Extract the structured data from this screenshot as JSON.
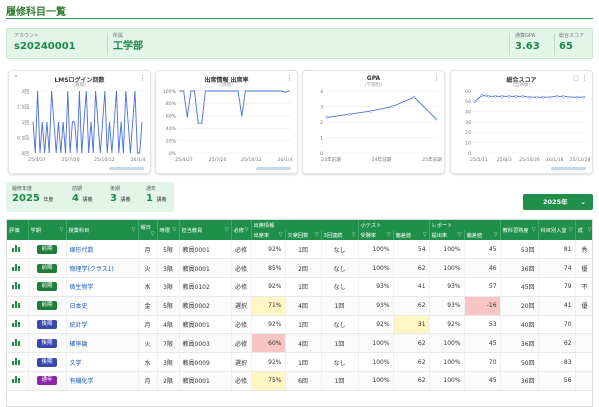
{
  "page": {
    "title": "履修科目一覧"
  },
  "profile": {
    "account_label": "アカウント",
    "account_value": "s20240001",
    "dept_label": "所属",
    "dept_value": "工学部",
    "gpa_label": "通算GPA",
    "gpa_value": "3.63",
    "score_label": "総合スコア",
    "score_value": "65"
  },
  "charts": [
    {
      "title": "LMSログイン回数",
      "subtitle": "(週間)",
      "type": "line",
      "y_ticks": [
        "0回",
        "0.5回",
        "1回",
        "1.5回",
        "2回"
      ],
      "x_ticks": [
        "25/4/27",
        "25/7/20",
        "25/10/12",
        "26/1/4"
      ],
      "ylim": [
        0,
        2
      ],
      "values": [
        1,
        0,
        2,
        0,
        1,
        0,
        1,
        0,
        2,
        1,
        0,
        1,
        0,
        1,
        0,
        2,
        0,
        1,
        1,
        0,
        2,
        0,
        1,
        2,
        0,
        1,
        0,
        2,
        1,
        0,
        1,
        2,
        0,
        1,
        0,
        1,
        2,
        0,
        1,
        0,
        2,
        1,
        0,
        1,
        2,
        0,
        0,
        1
      ]
    },
    {
      "title": "出席情報 出席率",
      "subtitle": "(週間)",
      "type": "line",
      "y_ticks": [
        "0%",
        "20%",
        "40%",
        "60%",
        "80%",
        "100%"
      ],
      "x_ticks": [
        "25/4/27",
        "25/7/20",
        "25/10/12",
        "26/1/4"
      ],
      "ylim": [
        0,
        100
      ],
      "values": [
        100,
        100,
        58,
        100,
        100,
        48,
        48,
        100,
        100,
        100,
        100,
        100,
        100,
        100,
        100,
        100,
        100,
        60,
        100,
        100,
        100,
        100,
        100,
        100,
        100,
        100,
        100,
        100,
        100,
        98,
        100
      ]
    },
    {
      "title": "GPA",
      "subtitle": "(学期別)",
      "type": "line",
      "y_ticks": [
        "0",
        "1",
        "2",
        "3",
        "4"
      ],
      "x_ticks": [
        "23年前期",
        "24年前期",
        "25年前期"
      ],
      "ylim": [
        0,
        4
      ],
      "values": [
        2.3,
        2.5,
        2.7,
        3.0,
        3.6,
        2.2
      ]
    },
    {
      "title": "総合スコア",
      "subtitle": "(全期間)",
      "type": "line",
      "y_ticks": [
        "0",
        "10",
        "20",
        "30",
        "40",
        "50",
        "60"
      ],
      "x_ticks": [
        "25/5/11",
        "25/8/3",
        "25/10/26",
        "26/1/18",
        "25/12/28"
      ],
      "ylim": [
        0,
        70
      ],
      "values": [
        58,
        65,
        64,
        64,
        64,
        64,
        64,
        64,
        63,
        63,
        63,
        63,
        64,
        64,
        63,
        63,
        63
      ]
    }
  ],
  "stats": {
    "year_label": "履修年度",
    "year_value": "2025",
    "year_unit": "年度",
    "first_label": "前期",
    "first_value": "4",
    "first_unit": "講義",
    "second_label": "後期",
    "second_value": "3",
    "second_unit": "講義",
    "annual_label": "通年",
    "annual_value": "1",
    "annual_unit": "講義"
  },
  "year_select": {
    "label": "2025年"
  },
  "table": {
    "group_headers": {
      "attendance": "出席情報",
      "quiz": "小テスト",
      "report": "レポート"
    },
    "headers": [
      "評価",
      "学期",
      "授業科目",
      "曜日",
      "時限",
      "担当教員",
      "必修",
      "出席率",
      "欠席回数",
      "3回連続",
      "受験率",
      "偏差値",
      "提出率",
      "偏差値",
      "教科習熟度",
      "科目別入室",
      "成"
    ],
    "rows": [
      {
        "term": "前期",
        "term_type": "prev",
        "subject": "線形代数",
        "day": "月",
        "period": "5限",
        "teacher": "教員0001",
        "req": "必修",
        "att": "92%",
        "abs": "1回",
        "cons": "なし",
        "qrate": "100%",
        "qdev": "54",
        "rrate": "100%",
        "rdev": "45",
        "mastery": "53回",
        "room": "81",
        "g": "秀",
        "flags": []
      },
      {
        "term": "前期",
        "term_type": "prev",
        "subject": "物理学(クラス1)",
        "day": "火",
        "period": "3限",
        "teacher": "教員0001",
        "req": "必修",
        "att": "85%",
        "abs": "2回",
        "cons": "なし",
        "qrate": "100%",
        "qdev": "62",
        "rrate": "100%",
        "rdev": "46",
        "mastery": "36回",
        "room": "74",
        "g": "優",
        "flags": []
      },
      {
        "term": "前期",
        "term_type": "prev",
        "subject": "微生物学",
        "day": "水",
        "period": "3限",
        "teacher": "教員0102",
        "req": "必修",
        "att": "92%",
        "abs": "1回",
        "cons": "なし",
        "qrate": "93%",
        "qdev": "41",
        "rrate": "93%",
        "rdev": "57",
        "mastery": "45回",
        "room": "79",
        "g": "不",
        "flags": []
      },
      {
        "term": "前期",
        "term_type": "prev",
        "subject": "日本史",
        "day": "金",
        "period": "5限",
        "teacher": "教員0002",
        "req": "選択",
        "att": "71%",
        "abs": "4回",
        "cons": "1回",
        "qrate": "93%",
        "qdev": "62",
        "rrate": "93%",
        "rdev": "-16",
        "mastery": "20回",
        "room": "41",
        "g": "優",
        "flags": [
          "att_y",
          "rdev_r"
        ]
      },
      {
        "term": "後期",
        "term_type": "post",
        "subject": "統計学",
        "day": "月",
        "period": "4限",
        "teacher": "教員0001",
        "req": "必修",
        "att": "92%",
        "abs": "1回",
        "cons": "なし",
        "qrate": "92%",
        "qdev": "31",
        "rrate": "92%",
        "rdev": "53",
        "mastery": "40回",
        "room": "70",
        "g": "",
        "flags": [
          "qdev_y"
        ]
      },
      {
        "term": "後期",
        "term_type": "post",
        "subject": "確率論",
        "day": "火",
        "period": "7限",
        "teacher": "教員0003",
        "req": "必修",
        "att": "60%",
        "abs": "4回",
        "cons": "1回",
        "qrate": "100%",
        "qdev": "62",
        "rrate": "100%",
        "rdev": "45",
        "mastery": "36回",
        "room": "62",
        "g": "",
        "flags": [
          "att_r"
        ]
      },
      {
        "term": "後期",
        "term_type": "post",
        "subject": "文学",
        "day": "水",
        "period": "3限",
        "teacher": "教員0009",
        "req": "選択",
        "att": "92%",
        "abs": "1回",
        "cons": "なし",
        "qrate": "100%",
        "qdev": "62",
        "rrate": "100%",
        "rdev": "70",
        "mastery": "50回",
        "room": "83",
        "g": "",
        "flags": []
      },
      {
        "term": "通年",
        "term_type": "year",
        "subject": "有機化学",
        "day": "月",
        "period": "2限",
        "teacher": "教員0001",
        "req": "必修",
        "att": "75%",
        "abs": "6回",
        "cons": "1回",
        "qrate": "100%",
        "qdev": "62",
        "rrate": "100%",
        "rdev": "45",
        "mastery": "36回",
        "room": "56",
        "g": "",
        "flags": [
          "att_y"
        ]
      }
    ]
  }
}
